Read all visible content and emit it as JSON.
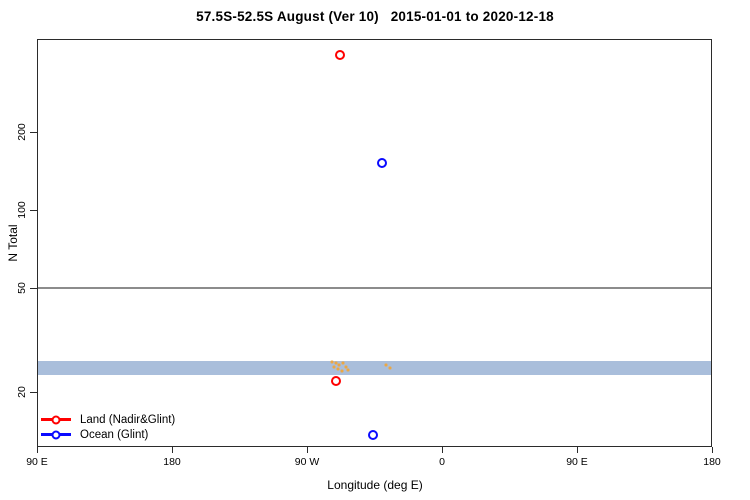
{
  "chart_data": {
    "type": "scatter",
    "title": "57.5S-52.5S August (Ver 10)   2015-01-01 to 2020-12-18",
    "xlabel": "Longitude (deg E)",
    "ylabel": "N Total",
    "x_axis": {
      "range": [
        90,
        540
      ],
      "note": "longitude wraps: 90E to 180 going eastward through 90W and 0",
      "ticks": [
        {
          "value": 90,
          "label": "90 E"
        },
        {
          "value": 180,
          "label": "180"
        },
        {
          "value": 270,
          "label": "90 W"
        },
        {
          "value": 360,
          "label": "0"
        },
        {
          "value": 450,
          "label": "90 E"
        },
        {
          "value": 540,
          "label": "180"
        }
      ]
    },
    "y_axis": {
      "scale": "log",
      "range": [
        12.4,
        455
      ],
      "ticks": [
        {
          "value": 20,
          "label": "20"
        },
        {
          "value": 50,
          "label": "50"
        },
        {
          "value": 100,
          "label": "100"
        },
        {
          "value": 200,
          "label": "200"
        }
      ]
    },
    "reference_line": {
      "y": 50,
      "color": "#8C8C8C"
    },
    "band": {
      "y_min": 23.2,
      "y_max": 26.3,
      "color": "#A9BEDB"
    },
    "series": [
      {
        "name": "Land (Nadir&Glint)",
        "color": "#FF0000",
        "marker": "open-circle",
        "points": [
          {
            "x": 292,
            "y": 395
          },
          {
            "x": 289,
            "y": 22
          }
        ]
      },
      {
        "name": "Ocean (Glint)",
        "color": "#0A0AFF",
        "marker": "open-circle",
        "points": [
          {
            "x": 320,
            "y": 152
          },
          {
            "x": 314,
            "y": 13.6
          }
        ]
      }
    ],
    "minor_points": {
      "color": "#EBA743",
      "points": [
        {
          "x": 286.7,
          "y": 26.1
        },
        {
          "x": 289.3,
          "y": 25.9
        },
        {
          "x": 291.3,
          "y": 25.4
        },
        {
          "x": 294.0,
          "y": 25.7
        },
        {
          "x": 288.0,
          "y": 24.9
        },
        {
          "x": 290.7,
          "y": 24.5
        },
        {
          "x": 293.3,
          "y": 24.1
        },
        {
          "x": 296.0,
          "y": 24.9
        },
        {
          "x": 297.3,
          "y": 24.3
        },
        {
          "x": 322.7,
          "y": 25.4
        },
        {
          "x": 325.3,
          "y": 24.7
        }
      ]
    },
    "legend": {
      "position": "bottom-left",
      "items": [
        {
          "label": "Land (Nadir&Glint)",
          "color": "#FF0000"
        },
        {
          "label": "Ocean (Glint)",
          "color": "#0A0AFF"
        }
      ]
    }
  }
}
